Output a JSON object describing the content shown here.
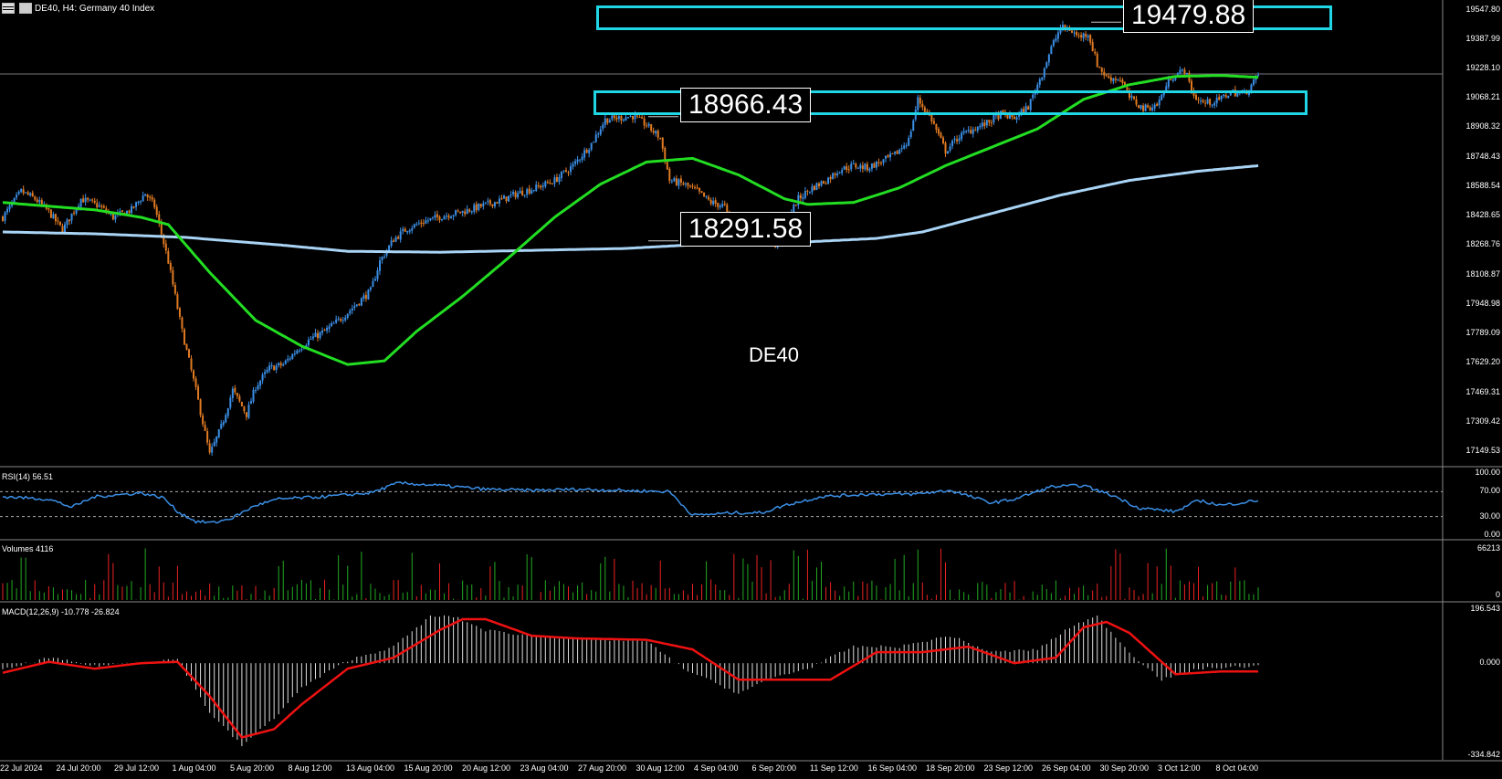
{
  "header": {
    "symbol_line": "DE40, H4:  Germany 40 Index"
  },
  "watermark": "DE40",
  "price_labels": {
    "top": "19479.88",
    "mid": "18966.43",
    "low": "18291.58"
  },
  "panels": {
    "rsi": "RSI(14) 56.51",
    "volumes": "Volumes 4116",
    "macd": "MACD(12,26,9) -10.778 -26.824"
  },
  "price_axis_ticks": [
    "19547.80",
    "19387.99",
    "19228.10",
    "19068.21",
    "18908.32",
    "18748.43",
    "18588.54",
    "18428.65",
    "18268.76",
    "18108.87",
    "17948.98",
    "17789.09",
    "17629.20",
    "17469.31",
    "17309.42",
    "17149.53"
  ],
  "rsi_axis_ticks": [
    "100.00",
    "70.00",
    "30.00",
    "0.00"
  ],
  "volume_axis_ticks": [
    "66213",
    "0"
  ],
  "macd_axis_ticks": [
    "196.543",
    "0.000",
    "-334.842"
  ],
  "time_axis_ticks": [
    "22 Jul 2024",
    "24 Jul 20:00",
    "29 Jul 12:00",
    "1 Aug 04:00",
    "5 Aug 20:00",
    "8 Aug 12:00",
    "13 Aug 04:00",
    "15 Aug 20:00",
    "20 Aug 12:00",
    "23 Aug 04:00",
    "27 Aug 20:00",
    "30 Aug 12:00",
    "4 Sep 04:00",
    "6 Sep 20:00",
    "11 Sep 12:00",
    "16 Sep 04:00",
    "18 Sep 20:00",
    "23 Sep 12:00",
    "26 Sep 04:00",
    "30 Sep 20:00",
    "3 Oct 12:00",
    "8 Oct 04:00"
  ],
  "colors": {
    "background": "#000000",
    "bull_candle": "#3b8fe6",
    "bear_candle": "#e07a22",
    "ma_fast": "#22dd22",
    "ma_slow": "#a9d4f5",
    "zone_box": "#20d6e4",
    "rsi_line": "#3b8fe6",
    "macd_signal": "#ee1111",
    "macd_hist": "#dddddd",
    "vol_up": "#22aa22",
    "vol_down": "#ee2222"
  },
  "chart_data": {
    "type": "candlestick",
    "timeframe": "H4",
    "symbol": "DE40",
    "y_range": [
      17070,
      19600
    ],
    "levels": [
      {
        "label": "19479.88",
        "value": 19479.88
      },
      {
        "label": "18966.43",
        "value": 18966.43
      },
      {
        "label": "18291.58",
        "value": 18291.58
      }
    ],
    "zones": [
      {
        "from": 19395,
        "to": 19530
      },
      {
        "from": 18920,
        "to": 19055
      }
    ],
    "close_anchors": [
      [
        0,
        18420
      ],
      [
        8,
        18560
      ],
      [
        14,
        18520
      ],
      [
        20,
        18450
      ],
      [
        26,
        18350
      ],
      [
        34,
        18520
      ],
      [
        42,
        18480
      ],
      [
        48,
        18420
      ],
      [
        56,
        18460
      ],
      [
        62,
        18550
      ],
      [
        66,
        18480
      ],
      [
        72,
        18180
      ],
      [
        78,
        17800
      ],
      [
        84,
        17480
      ],
      [
        90,
        17130
      ],
      [
        95,
        17280
      ],
      [
        100,
        17480
      ],
      [
        106,
        17350
      ],
      [
        110,
        17500
      ],
      [
        116,
        17600
      ],
      [
        122,
        17620
      ],
      [
        128,
        17700
      ],
      [
        134,
        17760
      ],
      [
        140,
        17800
      ],
      [
        148,
        17880
      ],
      [
        154,
        17950
      ],
      [
        160,
        18020
      ],
      [
        164,
        18180
      ],
      [
        170,
        18300
      ],
      [
        176,
        18360
      ],
      [
        184,
        18400
      ],
      [
        192,
        18430
      ],
      [
        200,
        18450
      ],
      [
        208,
        18480
      ],
      [
        216,
        18510
      ],
      [
        224,
        18550
      ],
      [
        232,
        18580
      ],
      [
        240,
        18620
      ],
      [
        248,
        18700
      ],
      [
        256,
        18820
      ],
      [
        262,
        18950
      ],
      [
        268,
        18960
      ],
      [
        274,
        18970
      ],
      [
        280,
        18920
      ],
      [
        286,
        18850
      ],
      [
        290,
        18620
      ],
      [
        296,
        18600
      ],
      [
        302,
        18560
      ],
      [
        308,
        18500
      ],
      [
        314,
        18480
      ],
      [
        318,
        18300
      ],
      [
        324,
        18420
      ],
      [
        330,
        18380
      ],
      [
        336,
        18260
      ],
      [
        340,
        18380
      ],
      [
        346,
        18520
      ],
      [
        352,
        18580
      ],
      [
        358,
        18620
      ],
      [
        364,
        18680
      ],
      [
        370,
        18700
      ],
      [
        376,
        18690
      ],
      [
        382,
        18720
      ],
      [
        388,
        18760
      ],
      [
        394,
        18840
      ],
      [
        398,
        19060
      ],
      [
        404,
        18950
      ],
      [
        410,
        18780
      ],
      [
        416,
        18860
      ],
      [
        422,
        18900
      ],
      [
        428,
        18930
      ],
      [
        434,
        18980
      ],
      [
        440,
        18960
      ],
      [
        446,
        19020
      ],
      [
        452,
        19200
      ],
      [
        456,
        19340
      ],
      [
        460,
        19450
      ],
      [
        464,
        19440
      ],
      [
        468,
        19400
      ],
      [
        472,
        19420
      ],
      [
        476,
        19250
      ],
      [
        480,
        19180
      ],
      [
        486,
        19170
      ],
      [
        490,
        19070
      ],
      [
        496,
        19010
      ],
      [
        502,
        19030
      ],
      [
        508,
        19180
      ],
      [
        514,
        19220
      ],
      [
        518,
        19080
      ],
      [
        522,
        19040
      ],
      [
        528,
        19050
      ],
      [
        534,
        19100
      ],
      [
        540,
        19090
      ],
      [
        546,
        19190
      ]
    ],
    "ma_fast_anchors": [
      [
        0,
        18500
      ],
      [
        20,
        18480
      ],
      [
        40,
        18460
      ],
      [
        60,
        18420
      ],
      [
        72,
        18380
      ],
      [
        90,
        18120
      ],
      [
        110,
        17860
      ],
      [
        130,
        17720
      ],
      [
        150,
        17620
      ],
      [
        166,
        17640
      ],
      [
        180,
        17800
      ],
      [
        200,
        17990
      ],
      [
        220,
        18200
      ],
      [
        240,
        18420
      ],
      [
        260,
        18600
      ],
      [
        280,
        18720
      ],
      [
        300,
        18740
      ],
      [
        320,
        18650
      ],
      [
        340,
        18520
      ],
      [
        350,
        18490
      ],
      [
        370,
        18500
      ],
      [
        390,
        18580
      ],
      [
        410,
        18700
      ],
      [
        430,
        18800
      ],
      [
        450,
        18900
      ],
      [
        470,
        19060
      ],
      [
        490,
        19140
      ],
      [
        510,
        19185
      ],
      [
        530,
        19190
      ],
      [
        546,
        19180
      ]
    ],
    "ma_slow_anchors": [
      [
        0,
        18340
      ],
      [
        40,
        18330
      ],
      [
        80,
        18310
      ],
      [
        120,
        18270
      ],
      [
        150,
        18235
      ],
      [
        190,
        18230
      ],
      [
        230,
        18240
      ],
      [
        270,
        18250
      ],
      [
        300,
        18270
      ],
      [
        340,
        18280
      ],
      [
        380,
        18305
      ],
      [
        400,
        18340
      ],
      [
        430,
        18440
      ],
      [
        460,
        18540
      ],
      [
        490,
        18620
      ],
      [
        520,
        18670
      ],
      [
        546,
        18700
      ]
    ],
    "rsi_anchors": [
      [
        0,
        62
      ],
      [
        20,
        58
      ],
      [
        30,
        45
      ],
      [
        40,
        62
      ],
      [
        60,
        68
      ],
      [
        70,
        60
      ],
      [
        76,
        38
      ],
      [
        84,
        22
      ],
      [
        92,
        20
      ],
      [
        100,
        28
      ],
      [
        110,
        48
      ],
      [
        120,
        58
      ],
      [
        140,
        62
      ],
      [
        160,
        68
      ],
      [
        172,
        84
      ],
      [
        190,
        80
      ],
      [
        210,
        74
      ],
      [
        230,
        72
      ],
      [
        250,
        74
      ],
      [
        270,
        72
      ],
      [
        290,
        70
      ],
      [
        300,
        32
      ],
      [
        318,
        36
      ],
      [
        330,
        36
      ],
      [
        340,
        48
      ],
      [
        356,
        62
      ],
      [
        376,
        66
      ],
      [
        396,
        66
      ],
      [
        412,
        72
      ],
      [
        430,
        52
      ],
      [
        440,
        58
      ],
      [
        456,
        78
      ],
      [
        470,
        80
      ],
      [
        484,
        62
      ],
      [
        494,
        44
      ],
      [
        510,
        38
      ],
      [
        520,
        56
      ],
      [
        530,
        48
      ],
      [
        546,
        56
      ]
    ],
    "macd_signal_anchors": [
      [
        0,
        -35
      ],
      [
        20,
        5
      ],
      [
        40,
        -20
      ],
      [
        60,
        0
      ],
      [
        76,
        5
      ],
      [
        90,
        -120
      ],
      [
        104,
        -270
      ],
      [
        118,
        -240
      ],
      [
        130,
        -150
      ],
      [
        150,
        -20
      ],
      [
        170,
        20
      ],
      [
        190,
        120
      ],
      [
        200,
        160
      ],
      [
        210,
        160
      ],
      [
        230,
        100
      ],
      [
        250,
        90
      ],
      [
        280,
        85
      ],
      [
        300,
        50
      ],
      [
        320,
        -60
      ],
      [
        340,
        -60
      ],
      [
        360,
        -60
      ],
      [
        380,
        40
      ],
      [
        400,
        40
      ],
      [
        420,
        60
      ],
      [
        440,
        0
      ],
      [
        458,
        20
      ],
      [
        470,
        130
      ],
      [
        480,
        150
      ],
      [
        490,
        110
      ],
      [
        510,
        -40
      ],
      [
        530,
        -30
      ],
      [
        546,
        -30
      ]
    ],
    "macd_hist_anchors": [
      [
        0,
        -25
      ],
      [
        20,
        20
      ],
      [
        40,
        -10
      ],
      [
        60,
        5
      ],
      [
        76,
        15
      ],
      [
        90,
        -180
      ],
      [
        104,
        -300
      ],
      [
        118,
        -200
      ],
      [
        130,
        -90
      ],
      [
        150,
        10
      ],
      [
        170,
        60
      ],
      [
        186,
        170
      ],
      [
        196,
        170
      ],
      [
        210,
        120
      ],
      [
        230,
        100
      ],
      [
        250,
        90
      ],
      [
        280,
        80
      ],
      [
        296,
        -20
      ],
      [
        320,
        -110
      ],
      [
        336,
        -50
      ],
      [
        350,
        -20
      ],
      [
        370,
        60
      ],
      [
        390,
        60
      ],
      [
        412,
        100
      ],
      [
        430,
        40
      ],
      [
        450,
        50
      ],
      [
        466,
        140
      ],
      [
        476,
        170
      ],
      [
        490,
        40
      ],
      [
        504,
        -60
      ],
      [
        520,
        -20
      ],
      [
        546,
        -10
      ]
    ]
  }
}
